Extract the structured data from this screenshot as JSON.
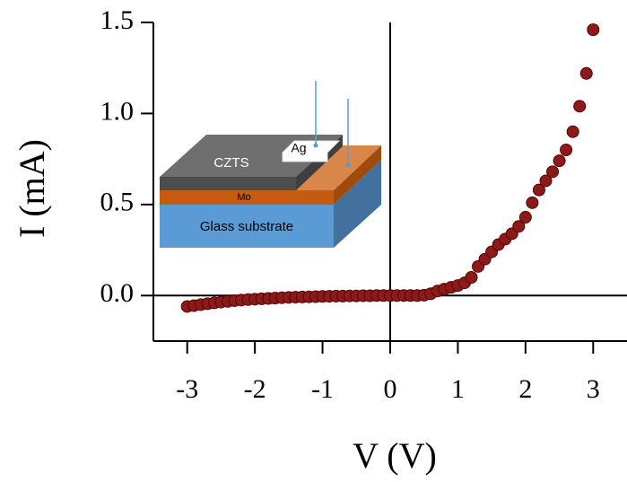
{
  "chart_data": {
    "type": "scatter",
    "xlabel": "V (V)",
    "ylabel": "I (mA)",
    "color": "#8b1a1a",
    "xlim": [
      -3.5,
      3.5
    ],
    "ylim": [
      -0.25,
      1.5
    ],
    "xticks": [
      -3,
      -2,
      -1,
      0,
      1,
      2,
      3
    ],
    "yticks": [
      {
        "value": 0,
        "label": "0.0"
      },
      {
        "value": 0.5,
        "label": "0.5"
      },
      {
        "value": 1,
        "label": "1.0"
      },
      {
        "value": 1.5,
        "label": "1.5"
      }
    ],
    "inset_labels": [
      "CZTS",
      "Ag",
      "Mo",
      "Glass substrate"
    ],
    "x": [
      -3.0,
      -2.9,
      -2.8,
      -2.7,
      -2.6,
      -2.5,
      -2.4,
      -2.3,
      -2.2,
      -2.1,
      -2.0,
      -1.9,
      -1.8,
      -1.7,
      -1.6,
      -1.5,
      -1.4,
      -1.3,
      -1.2,
      -1.1,
      -1.0,
      -0.9,
      -0.8,
      -0.7,
      -0.6,
      -0.5,
      -0.4,
      -0.3,
      -0.2,
      -0.1,
      0,
      0.1,
      0.2,
      0.3,
      0.4,
      0.5,
      0.6,
      0.7,
      0.8,
      0.9,
      1.0,
      1.1,
      1.2,
      1.3,
      1.4,
      1.5,
      1.6,
      1.7,
      1.8,
      1.9,
      2.0,
      2.1,
      2.2,
      2.3,
      2.4,
      2.5,
      2.6,
      2.7,
      2.8,
      2.9,
      3.0
    ],
    "values": [
      -0.06,
      -0.055,
      -0.05,
      -0.045,
      -0.04,
      -0.036,
      -0.032,
      -0.028,
      -0.025,
      -0.022,
      -0.02,
      -0.018,
      -0.016,
      -0.014,
      -0.012,
      -0.01,
      -0.009,
      -0.008,
      -0.007,
      -0.006,
      -0.005,
      -0.004,
      -0.003,
      -0.003,
      -0.002,
      -0.002,
      -0.001,
      -0.001,
      0,
      0,
      0,
      0,
      0,
      0,
      0,
      0.002,
      0.01,
      0.025,
      0.035,
      0.045,
      0.055,
      0.07,
      0.1,
      0.16,
      0.2,
      0.24,
      0.28,
      0.31,
      0.34,
      0.38,
      0.43,
      0.51,
      0.58,
      0.63,
      0.68,
      0.74,
      0.8,
      0.9,
      1.04,
      1.22,
      1.46
    ]
  }
}
